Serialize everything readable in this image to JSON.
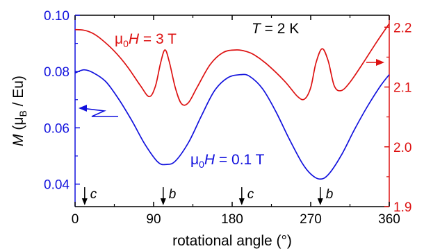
{
  "chart_data": {
    "type": "line",
    "xlabel": "rotational angle (°)",
    "ylabel": {
      "symbol": "M",
      "rest_open": " (μ",
      "sub": "B",
      "rest_close": " / Eu)"
    },
    "xlim": [
      0,
      360
    ],
    "ylim_left": [
      0.032,
      0.1
    ],
    "ylim_right": [
      1.9,
      2.22
    ],
    "x_ticks": [
      "0",
      "90",
      "180",
      "270",
      "360"
    ],
    "x_tick_values": [
      0,
      90,
      180,
      270,
      360
    ],
    "y_left_ticks": [
      "0.04",
      "0.06",
      "0.08",
      "0.10"
    ],
    "y_left_tick_values": [
      0.04,
      0.06,
      0.08,
      0.1
    ],
    "y_right_ticks": [
      "1.9",
      "2.0",
      "2.1",
      "2.2"
    ],
    "y_right_tick_values": [
      1.9,
      2.0,
      2.1,
      2.2
    ],
    "colors": {
      "left_axis": "#1111dd",
      "right_axis": "#dd1111",
      "frame": "#000000"
    },
    "temperature": {
      "symbol": "T",
      "value": " = 2 K"
    },
    "directions": [
      {
        "label": "c",
        "x": 11
      },
      {
        "label": "b",
        "x": 101
      },
      {
        "label": "c",
        "x": 191
      },
      {
        "label": "b",
        "x": 281
      }
    ],
    "series": [
      {
        "label_prefix": "μ",
        "label_sub": "0",
        "label_symbol": "H",
        "label_value": " = 3 T",
        "axis": "right",
        "color": "#dd1111",
        "x": [
          0,
          10,
          20,
          30,
          45,
          60,
          75,
          85,
          92,
          98,
          103,
          108,
          115,
          122,
          130,
          140,
          155,
          170,
          185,
          195,
          205,
          220,
          240,
          255,
          263,
          270,
          276,
          283,
          290,
          297,
          305,
          315,
          330,
          345,
          360
        ],
        "y": [
          2.196,
          2.195,
          2.19,
          2.18,
          2.16,
          2.134,
          2.102,
          2.084,
          2.101,
          2.14,
          2.162,
          2.142,
          2.098,
          2.072,
          2.074,
          2.1,
          2.138,
          2.158,
          2.162,
          2.16,
          2.154,
          2.138,
          2.11,
          2.084,
          2.08,
          2.099,
          2.14,
          2.164,
          2.144,
          2.102,
          2.094,
          2.108,
          2.14,
          2.174,
          2.206
        ]
      },
      {
        "label_prefix": "μ",
        "label_sub": "0",
        "label_symbol": "H",
        "label_value": " = 0.1 T",
        "axis": "left",
        "color": "#1111dd",
        "x": [
          0,
          10,
          20,
          35,
          50,
          65,
          80,
          95,
          105,
          115,
          130,
          145,
          160,
          175,
          190,
          200,
          215,
          230,
          245,
          260,
          270,
          280,
          290,
          305,
          320,
          335,
          350,
          360
        ],
        "y": [
          0.0795,
          0.0806,
          0.0797,
          0.0765,
          0.0702,
          0.0626,
          0.0542,
          0.0478,
          0.047,
          0.0482,
          0.0548,
          0.0644,
          0.0733,
          0.0778,
          0.0789,
          0.0783,
          0.0738,
          0.0658,
          0.0563,
          0.0476,
          0.0436,
          0.0418,
          0.0433,
          0.0502,
          0.0593,
          0.0676,
          0.0749,
          0.0789
        ]
      }
    ]
  }
}
